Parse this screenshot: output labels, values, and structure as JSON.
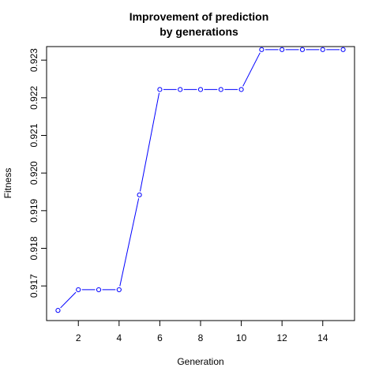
{
  "chart_data": {
    "type": "line",
    "title_line1": "Improvement of prediction",
    "title_line2": "by generations",
    "xlabel": "Generation",
    "ylabel": "Fitness",
    "xlim": [
      0.44,
      15.56
    ],
    "ylim": [
      0.91608,
      0.92336
    ],
    "x_ticks": [
      2,
      4,
      6,
      8,
      10,
      12,
      14
    ],
    "y_ticks": [
      0.917,
      0.918,
      0.919,
      0.92,
      0.921,
      0.922,
      0.923
    ],
    "x_tick_labels": [
      "2",
      "4",
      "6",
      "8",
      "10",
      "12",
      "14"
    ],
    "y_tick_labels": [
      "0.917",
      "0.918",
      "0.919",
      "0.920",
      "0.921",
      "0.922",
      "0.923"
    ],
    "line_color": "#0000ff",
    "point_marker": "open-circle",
    "grid": false,
    "x": [
      1,
      2,
      3,
      4,
      5,
      6,
      7,
      8,
      9,
      10,
      11,
      12,
      13,
      14,
      15
    ],
    "y": [
      0.91635,
      0.9169,
      0.9169,
      0.9169,
      0.91942,
      0.92222,
      0.92222,
      0.92222,
      0.92222,
      0.92222,
      0.92328,
      0.92328,
      0.92328,
      0.92328,
      0.92328
    ]
  }
}
